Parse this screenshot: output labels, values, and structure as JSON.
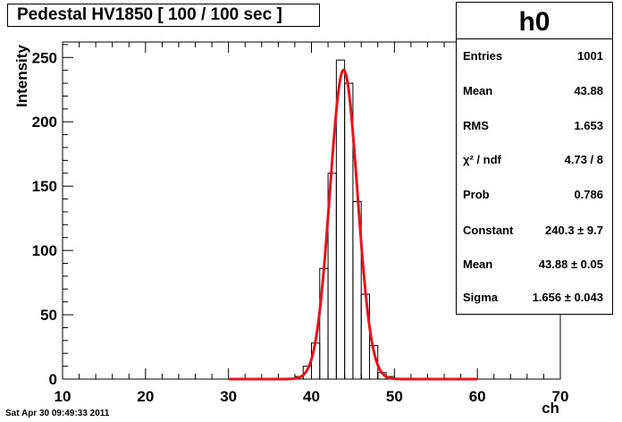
{
  "title": "Pedestal HV1850 [ 100 / 100 sec ]",
  "timestamp": "Sat Apr 30 09:49:33 2011",
  "stats": {
    "name": "h0",
    "rows": [
      {
        "label": "Entries",
        "value": "1001"
      },
      {
        "label": "Mean",
        "value": "43.88"
      },
      {
        "label": "RMS",
        "value": "1.653"
      },
      {
        "label": "χ² / ndf",
        "value": "4.73 / 8"
      },
      {
        "label": "Prob",
        "value": "0.786"
      },
      {
        "label": "Constant",
        "value": "240.3 ± 9.7"
      },
      {
        "label": "Mean",
        "value": "43.88 ± 0.05"
      },
      {
        "label": "Sigma",
        "value": "1.656 ± 0.043"
      }
    ]
  },
  "colors": {
    "histogram": "#000000",
    "fit": "#e8131c"
  },
  "chart_data": {
    "type": "histogram",
    "title": "Pedestal HV1850 [ 100 / 100 sec ]",
    "xlabel": "ch",
    "ylabel": "Intensity",
    "xlim": [
      10,
      70
    ],
    "ylim": [
      0,
      262
    ],
    "x_ticks": [
      10,
      20,
      30,
      40,
      50,
      60,
      70
    ],
    "y_ticks": [
      0,
      50,
      100,
      150,
      200,
      250
    ],
    "bins": [
      {
        "x0": 38,
        "x1": 39,
        "count": 2
      },
      {
        "x0": 39,
        "x1": 40,
        "count": 10
      },
      {
        "x0": 40,
        "x1": 41,
        "count": 28
      },
      {
        "x0": 41,
        "x1": 42,
        "count": 86
      },
      {
        "x0": 42,
        "x1": 43,
        "count": 160
      },
      {
        "x0": 43,
        "x1": 44,
        "count": 248
      },
      {
        "x0": 44,
        "x1": 45,
        "count": 230
      },
      {
        "x0": 45,
        "x1": 46,
        "count": 138
      },
      {
        "x0": 46,
        "x1": 47,
        "count": 66
      },
      {
        "x0": 47,
        "x1": 48,
        "count": 26
      },
      {
        "x0": 48,
        "x1": 49,
        "count": 5
      },
      {
        "x0": 49,
        "x1": 50,
        "count": 2
      }
    ],
    "fit": {
      "function": "gaus",
      "constant": 240.3,
      "mean": 43.88,
      "sigma": 1.656,
      "range": [
        30,
        60
      ]
    }
  }
}
